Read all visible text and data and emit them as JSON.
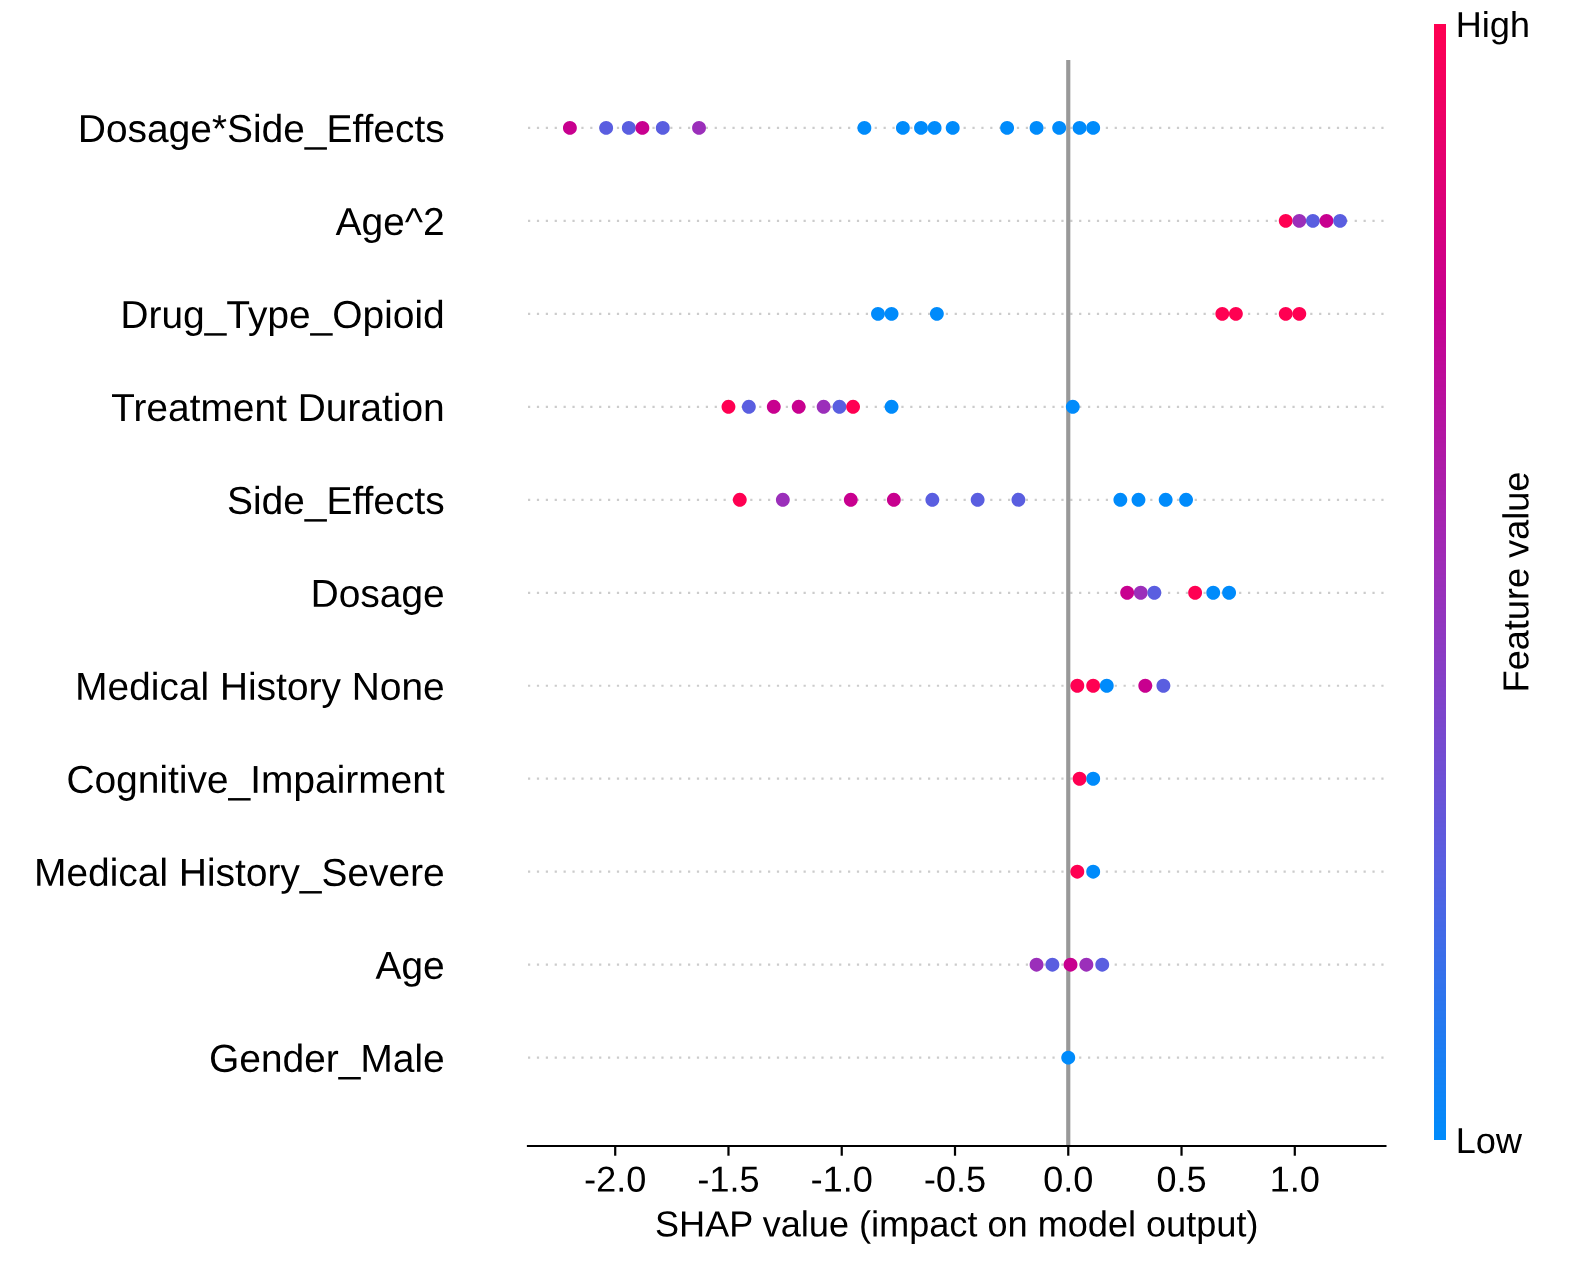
{
  "chart_data": {
    "type": "scatter",
    "orientation": "horizontal",
    "xlabel": "SHAP value (impact on model output)",
    "clabel": "Feature value",
    "categories": [
      "Dosage*Side_Effects",
      "Age^2",
      "Drug_Type_Opioid",
      "Treatment Duration",
      "Side_Effects",
      "Dosage",
      "Medical History None",
      "Cognitive_Impairment",
      "Medical History_Severe",
      "Age",
      "Gender_Male"
    ],
    "xlim": [
      -2.385,
      1.4
    ],
    "xticks": [
      {
        "value": -2.0,
        "label": "-2.0"
      },
      {
        "value": -1.5,
        "label": "-1.5"
      },
      {
        "value": -1.0,
        "label": "-1.0"
      },
      {
        "value": -0.5,
        "label": "-0.5"
      },
      {
        "value": 0.0,
        "label": "0.0"
      },
      {
        "value": 0.5,
        "label": "0.5"
      },
      {
        "value": 1.0,
        "label": "1.0"
      }
    ],
    "clim": [
      0,
      1
    ],
    "cticks": [
      {
        "value": 0,
        "label": "Low"
      },
      {
        "value": 1,
        "label": "High"
      }
    ],
    "ref_lines": [
      {
        "axis": "x",
        "value": 0,
        "color": "#999999"
      }
    ],
    "grid": "y",
    "marker": "circle",
    "legend": false,
    "series": [
      {
        "x": [
          "Dosage*Side_Effects",
          "Dosage*Side_Effects",
          "Dosage*Side_Effects",
          "Dosage*Side_Effects",
          "Dosage*Side_Effects",
          "Dosage*Side_Effects",
          "Dosage*Side_Effects",
          "Dosage*Side_Effects",
          "Dosage*Side_Effects",
          "Dosage*Side_Effects",
          "Dosage*Side_Effects",
          "Dosage*Side_Effects",
          "Dosage*Side_Effects",
          "Dosage*Side_Effects",
          "Dosage*Side_Effects",
          "Dosage*Side_Effects"
        ],
        "values": [
          -2.2,
          -2.04,
          -1.94,
          -1.88,
          -1.79,
          -1.63,
          -0.9,
          -0.73,
          -0.65,
          -0.59,
          -0.51,
          -0.27,
          -0.14,
          -0.04,
          0.05,
          0.11
        ],
        "colors": [
          "#c8008f",
          "#5a5ee0",
          "#5a5ee0",
          "#c8008f",
          "#5a5ee0",
          "#9b2fba",
          "#008bfb",
          "#008bfb",
          "#008bfb",
          "#008bfb",
          "#008bfb",
          "#008bfb",
          "#008bfb",
          "#008bfb",
          "#008bfb",
          "#008bfb"
        ]
      },
      {
        "x": [
          "Age^2",
          "Age^2",
          "Age^2",
          "Age^2",
          "Age^2"
        ],
        "values": [
          0.96,
          1.02,
          1.08,
          1.14,
          1.2
        ],
        "colors": [
          "#ff0052",
          "#9b2fba",
          "#5a5ee0",
          "#c8008f",
          "#5a5ee0"
        ]
      },
      {
        "x": [
          "Drug_Type_Opioid",
          "Drug_Type_Opioid",
          "Drug_Type_Opioid",
          "Drug_Type_Opioid",
          "Drug_Type_Opioid",
          "Drug_Type_Opioid",
          "Drug_Type_Opioid"
        ],
        "values": [
          -0.84,
          -0.78,
          -0.58,
          0.68,
          0.74,
          0.96,
          1.02
        ],
        "colors": [
          "#008bfb",
          "#008bfb",
          "#008bfb",
          "#ff0052",
          "#ff0052",
          "#ff0052",
          "#ff0052"
        ]
      },
      {
        "x": [
          "Treatment Duration",
          "Treatment Duration",
          "Treatment Duration",
          "Treatment Duration",
          "Treatment Duration",
          "Treatment Duration",
          "Treatment Duration",
          "Treatment Duration",
          "Treatment Duration"
        ],
        "values": [
          -1.5,
          -1.41,
          -1.3,
          -1.19,
          -1.08,
          -1.01,
          -0.95,
          -0.78,
          0.02
        ],
        "colors": [
          "#ff0052",
          "#5a5ee0",
          "#c8008f",
          "#c8008f",
          "#9b2fba",
          "#5a5ee0",
          "#ff0052",
          "#008bfb",
          "#008bfb"
        ]
      },
      {
        "x": [
          "Side_Effects",
          "Side_Effects",
          "Side_Effects",
          "Side_Effects",
          "Side_Effects",
          "Side_Effects",
          "Side_Effects",
          "Side_Effects",
          "Side_Effects",
          "Side_Effects",
          "Side_Effects"
        ],
        "values": [
          -1.45,
          -1.26,
          -0.96,
          -0.77,
          -0.6,
          -0.4,
          -0.22,
          0.23,
          0.31,
          0.43,
          0.52
        ],
        "colors": [
          "#ff0052",
          "#9b2fba",
          "#c8008f",
          "#c8008f",
          "#5a5ee0",
          "#5a5ee0",
          "#5a5ee0",
          "#008bfb",
          "#008bfb",
          "#008bfb",
          "#008bfb"
        ]
      },
      {
        "x": [
          "Dosage",
          "Dosage",
          "Dosage",
          "Dosage",
          "Dosage",
          "Dosage"
        ],
        "values": [
          0.26,
          0.32,
          0.38,
          0.56,
          0.64,
          0.71
        ],
        "colors": [
          "#c8008f",
          "#9b2fba",
          "#5a5ee0",
          "#ff0052",
          "#008bfb",
          "#008bfb"
        ]
      },
      {
        "x": [
          "Medical History None",
          "Medical History None",
          "Medical History None",
          "Medical History None",
          "Medical History None"
        ],
        "values": [
          0.04,
          0.11,
          0.17,
          0.34,
          0.42
        ],
        "colors": [
          "#ff0052",
          "#ff0052",
          "#008bfb",
          "#c8008f",
          "#5a5ee0"
        ]
      },
      {
        "x": [
          "Cognitive_Impairment",
          "Cognitive_Impairment"
        ],
        "values": [
          0.05,
          0.11
        ],
        "colors": [
          "#ff0052",
          "#008bfb"
        ]
      },
      {
        "x": [
          "Medical History_Severe",
          "Medical History_Severe"
        ],
        "values": [
          0.04,
          0.11
        ],
        "colors": [
          "#ff0052",
          "#008bfb"
        ]
      },
      {
        "x": [
          "Age",
          "Age",
          "Age",
          "Age",
          "Age"
        ],
        "values": [
          -0.14,
          -0.07,
          0.01,
          0.08,
          0.15
        ],
        "colors": [
          "#9b2fba",
          "#5a5ee0",
          "#c8008f",
          "#9b2fba",
          "#5a5ee0"
        ]
      },
      {
        "x": [
          "Gender_Male"
        ],
        "values": [
          0.0
        ],
        "colors": [
          "#008bfb"
        ]
      }
    ]
  }
}
